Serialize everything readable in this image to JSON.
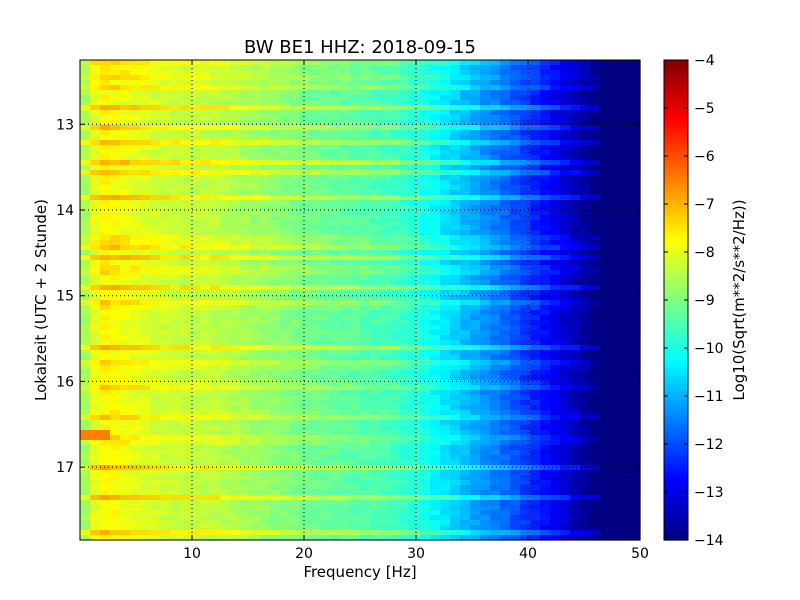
{
  "chart_data": {
    "type": "heatmap",
    "title": "BW BE1 HHZ: 2018-09-15",
    "xlabel": "Frequency [Hz]",
    "ylabel": "Lokalzeit (UTC + 2 Stunde)",
    "colorbar_label": "Log10(Sqrt(m**2/s**2/Hz))",
    "colormap": "jet",
    "xlim": [
      0,
      50
    ],
    "ylim": [
      12.25,
      17.85
    ],
    "y_inverted": true,
    "clim": [
      -14,
      -4
    ],
    "grid": true,
    "x_ticks": [
      10,
      20,
      30,
      40,
      50
    ],
    "x_tick_labels": [
      "10",
      "20",
      "30",
      "40",
      "50"
    ],
    "y_ticks": [
      13,
      14,
      15,
      16,
      17
    ],
    "y_tick_labels": [
      "13",
      "14",
      "15",
      "16",
      "17"
    ],
    "colorbar_ticks": [
      -4,
      -5,
      -6,
      -7,
      -8,
      -9,
      -10,
      -11,
      -12,
      -13,
      -14
    ],
    "colorbar_tick_labels": [
      "−4",
      "−5",
      "−6",
      "−7",
      "−8",
      "−9",
      "−10",
      "−11",
      "−12",
      "−13",
      "−14"
    ],
    "frequency_profile_hz": [
      0,
      1,
      2,
      4,
      8,
      12,
      20,
      28,
      31,
      33,
      36,
      39,
      42,
      44,
      46,
      50
    ],
    "frequency_profile_value": [
      -9.0,
      -8.2,
      -7.7,
      -7.9,
      -8.3,
      -8.4,
      -9.1,
      -9.6,
      -10.1,
      -10.6,
      -11.3,
      -12.0,
      -12.8,
      -13.4,
      -14.0,
      -14.0
    ],
    "high_energy_bands_hour": [
      12.3,
      12.43,
      12.55,
      12.8,
      13.05,
      13.2,
      13.45,
      13.55,
      13.85,
      14.35,
      14.45,
      14.55,
      14.7,
      14.9,
      15.1,
      15.6,
      15.8,
      16.05,
      16.4,
      16.68,
      17.0,
      17.35,
      17.75
    ],
    "hotspot": {
      "hour": 16.65,
      "frequency_hz": 1.0,
      "value": -6.5
    }
  }
}
